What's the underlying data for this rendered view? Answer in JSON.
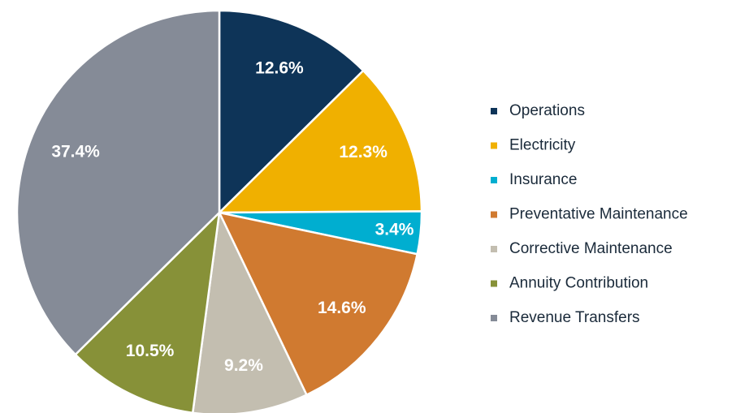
{
  "chart_data": {
    "type": "pie",
    "categories": [
      "Operations",
      "Electricity",
      "Insurance",
      "Preventative Maintenance",
      "Corrective Maintenance",
      "Annuity Contribution",
      "Revenue Transfers"
    ],
    "values": [
      12.6,
      12.3,
      3.4,
      14.6,
      9.2,
      10.5,
      37.4
    ],
    "value_labels": [
      "12.6%",
      "12.3%",
      "3.4%",
      "14.6%",
      "9.2%",
      "10.5%",
      "37.4%"
    ],
    "colors": [
      "#0e3458",
      "#f0b000",
      "#00aed0",
      "#d07a30",
      "#c3beb0",
      "#879138",
      "#858b97"
    ],
    "legend": "right"
  }
}
